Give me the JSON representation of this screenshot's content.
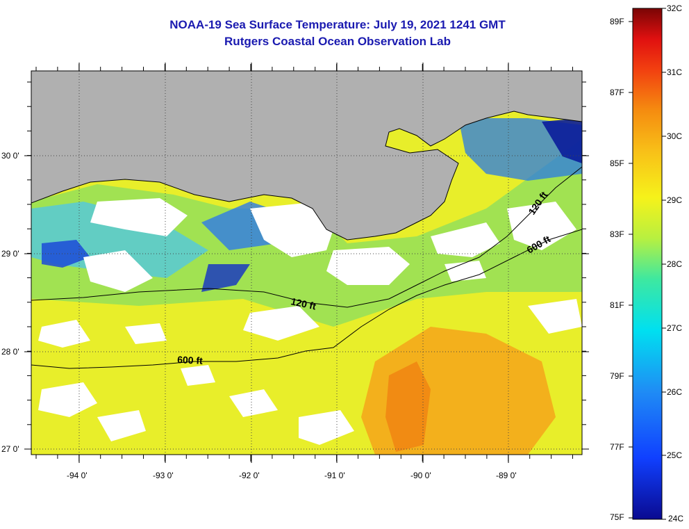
{
  "header": {
    "title_line1": "NOAA-19 Sea Surface Temperature:  July 19, 2021 1241 GMT",
    "title_line2": "Rutgers Coastal Ocean Observation Lab"
  },
  "map": {
    "x_ticks": [
      "-94 0'",
      "-93 0'",
      "-92 0'",
      "-91 0'",
      "-90 0'",
      "-89 0'"
    ],
    "y_ticks": [
      "30 0'",
      "29 0'",
      "28 0'",
      "27 0'"
    ],
    "contours": [
      "120 ft",
      "600 ft",
      "120 ft",
      "600 ft"
    ]
  },
  "colorbar": {
    "celsius": [
      "32C",
      "31C",
      "30C",
      "29C",
      "28C",
      "27C",
      "26C",
      "25C",
      "24C"
    ],
    "fahrenheit": [
      "89F",
      "87F",
      "85F",
      "83F",
      "81F",
      "79F",
      "77F",
      "75F"
    ]
  },
  "colors": {
    "land": "#b0b0b0",
    "title": "#1a1ab0"
  }
}
